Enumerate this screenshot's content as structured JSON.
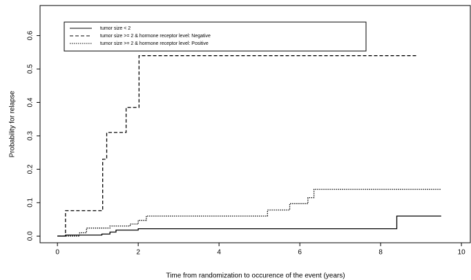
{
  "chart_data": {
    "type": "step",
    "xlabel": "Time from randomization to occurence of the event (years)",
    "ylabel": "Probability for relapse",
    "xlim": [
      -0.43,
      10.22
    ],
    "ylim": [
      -0.02,
      0.69
    ],
    "xticks": [
      0,
      2,
      4,
      6,
      8,
      10
    ],
    "yticks": [
      {
        "value": 0,
        "label": "0.0"
      },
      0.1,
      0.2,
      0.3,
      0.4,
      0.5,
      0.6
    ],
    "series": [
      {
        "name": "tumor size < 2",
        "color": "#000000",
        "dash": "solid",
        "x": [
          0,
          0.2,
          1.1,
          1.3,
          1.45,
          2.0,
          8.4,
          9.5
        ],
        "values": [
          0,
          0.003,
          0.006,
          0.012,
          0.018,
          0.022,
          0.06,
          0.06
        ]
      },
      {
        "name": "tumor size >= 2 & hormone receptor level: Negative",
        "color": "#000000",
        "dash": "dashed",
        "x": [
          0,
          0.2,
          1.12,
          1.22,
          1.7,
          2.02,
          8.9
        ],
        "values": [
          0,
          0.076,
          0.23,
          0.31,
          0.385,
          0.54,
          0.54
        ]
      },
      {
        "name": "tumor size >= 2 & hormone receptor level: Positive",
        "color": "#000000",
        "dash": "dotted",
        "x": [
          0,
          0.55,
          0.72,
          1.3,
          1.8,
          2.0,
          2.2,
          5.2,
          5.75,
          6.2,
          6.35,
          9.5
        ],
        "values": [
          0,
          0.01,
          0.024,
          0.03,
          0.036,
          0.047,
          0.06,
          0.078,
          0.097,
          0.115,
          0.14,
          0.14
        ]
      }
    ]
  }
}
